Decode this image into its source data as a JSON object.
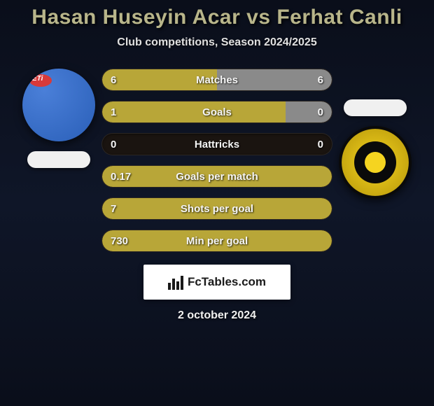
{
  "header": {
    "title": "Hasan Huseyin Acar vs Ferhat Canli",
    "subtitle": "Club competitions, Season 2024/2025"
  },
  "colors": {
    "p1_fill": "#b8a638",
    "p2_fill": "#8a8a8a",
    "track": "#1a1410"
  },
  "stats": [
    {
      "label": "Matches",
      "p1": "6",
      "p2": "6",
      "p1_pct": 50,
      "p2_pct": 50,
      "p1_color": "#b8a638",
      "p2_color": "#8a8a8a"
    },
    {
      "label": "Goals",
      "p1": "1",
      "p2": "0",
      "p1_pct": 80,
      "p2_pct": 20,
      "p1_color": "#b8a638",
      "p2_color": "#8a8a8a"
    },
    {
      "label": "Hattricks",
      "p1": "0",
      "p2": "0",
      "p1_pct": 0,
      "p2_pct": 0,
      "p1_color": "#b8a638",
      "p2_color": "#8a8a8a"
    },
    {
      "label": "Goals per match",
      "p1": "0.17",
      "p2": "",
      "p1_pct": 100,
      "p2_pct": 0,
      "p1_color": "#b8a638",
      "p2_color": "#8a8a8a"
    },
    {
      "label": "Shots per goal",
      "p1": "7",
      "p2": "",
      "p1_pct": 100,
      "p2_pct": 0,
      "p1_color": "#b8a638",
      "p2_color": "#8a8a8a"
    },
    {
      "label": "Min per goal",
      "p1": "730",
      "p2": "",
      "p1_pct": 100,
      "p2_pct": 0,
      "p1_color": "#b8a638",
      "p2_color": "#8a8a8a"
    }
  ],
  "brand": {
    "text": "FcTables.com"
  },
  "footer": {
    "date": "2 october 2024"
  }
}
